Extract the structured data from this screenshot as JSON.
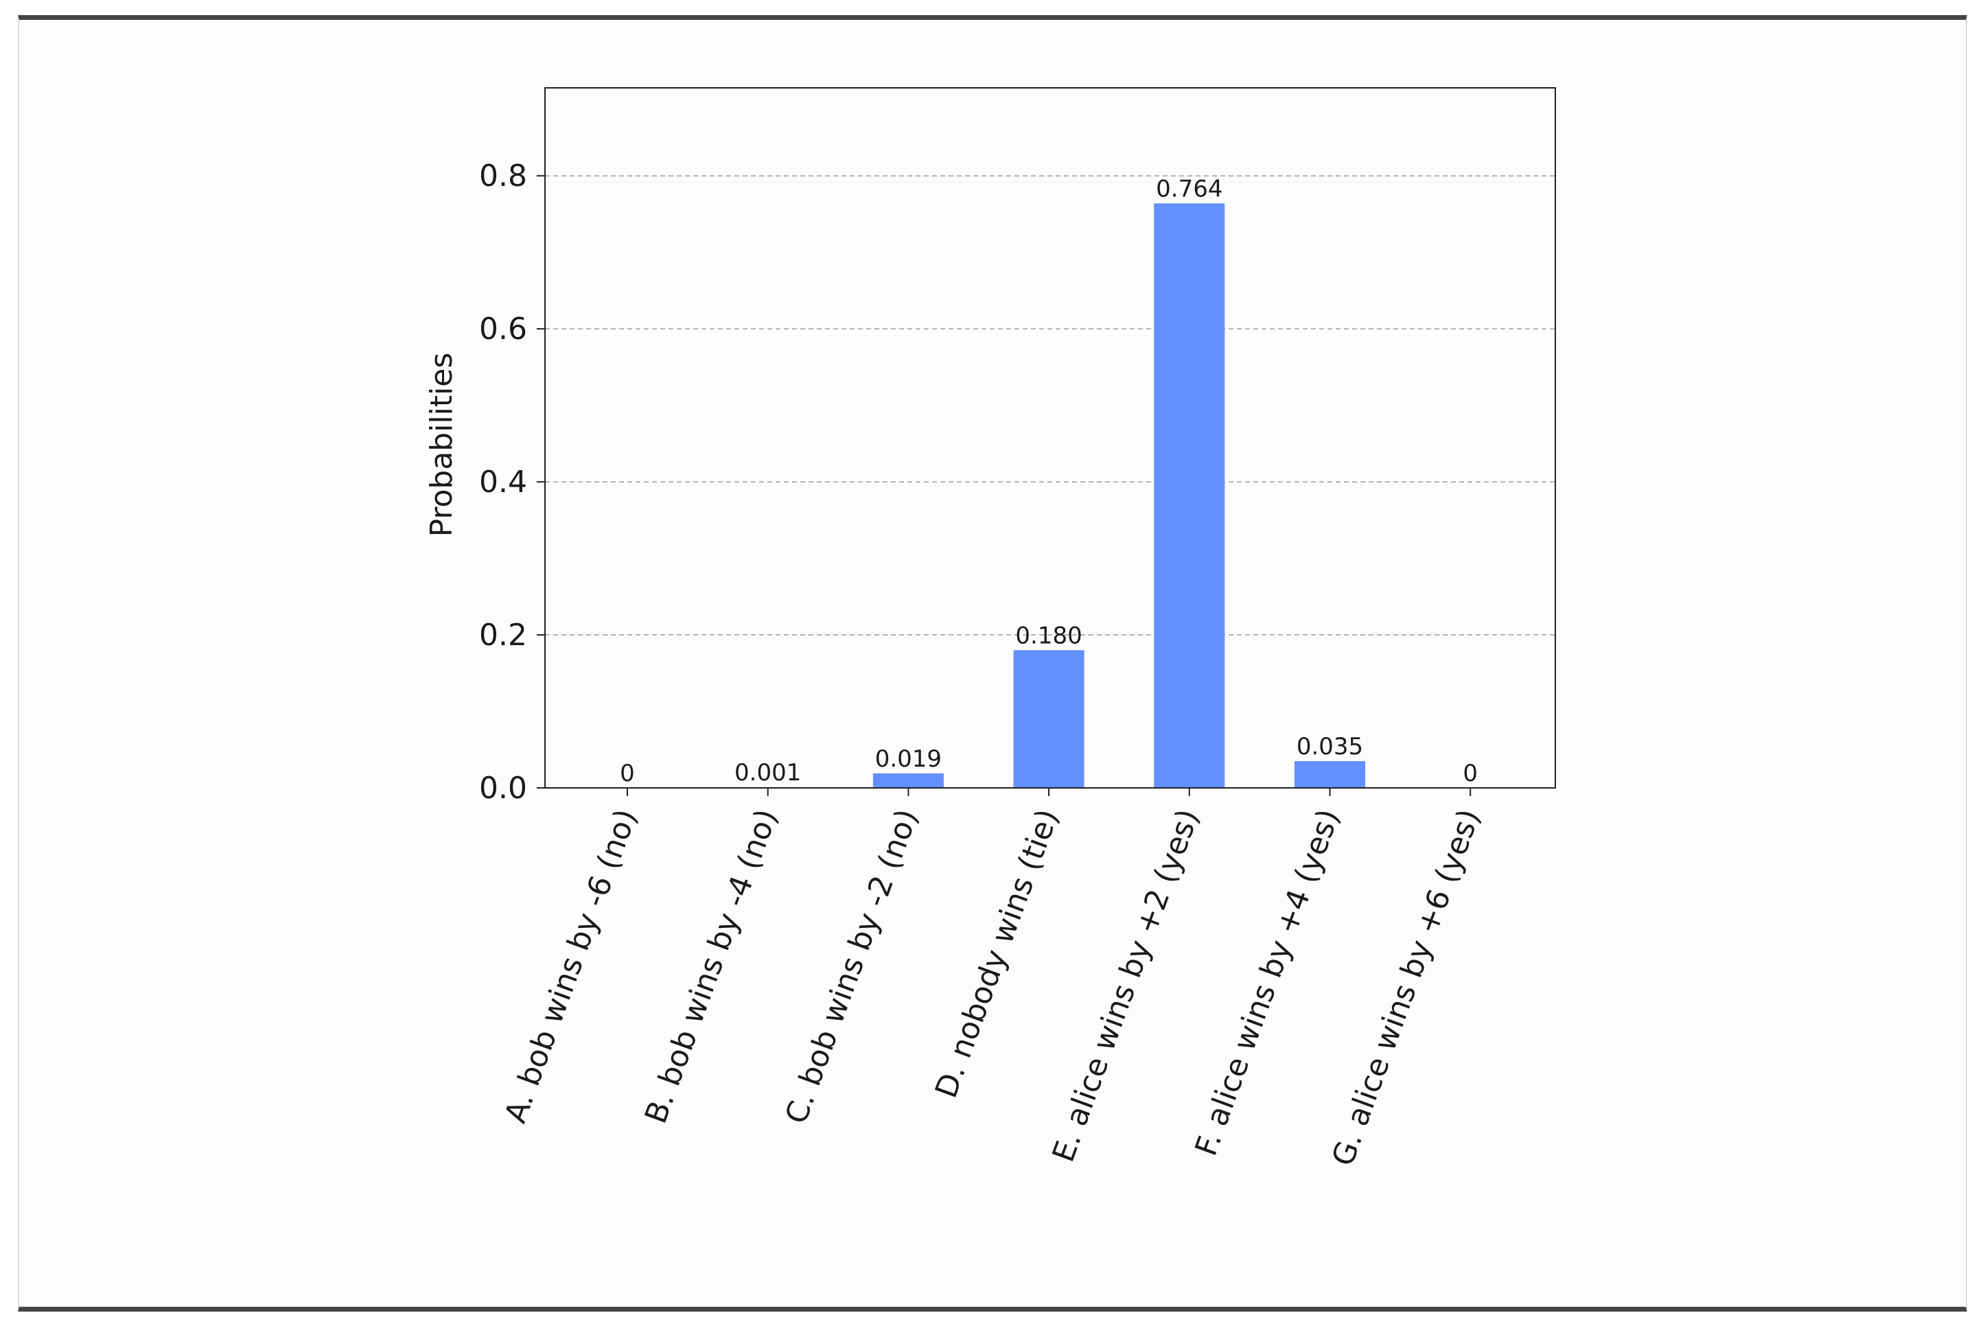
{
  "chart_data": {
    "type": "bar",
    "ylabel": "Probabilities",
    "xlabel": "",
    "title": "",
    "ylim": [
      0,
      0.915
    ],
    "yticks": [
      "0.0",
      "0.2",
      "0.4",
      "0.6",
      "0.8"
    ],
    "grid": "horizontal dashed",
    "bar_color": "#648FFF",
    "categories": [
      "A. bob wins by -6 (no)",
      "B. bob wins by -4 (no)",
      "C. bob wins by -2 (no)",
      "D. nobody wins (tie)",
      "E. alice wins by +2 (yes)",
      "F. alice wins by +4 (yes)",
      "G. alice wins by +6 (yes)"
    ],
    "values": [
      0,
      0.001,
      0.019,
      0.18,
      0.764,
      0.035,
      0
    ],
    "data_labels": [
      "0",
      "0.001",
      "0.019",
      "0.180",
      "0.764",
      "0.035",
      "0"
    ]
  }
}
